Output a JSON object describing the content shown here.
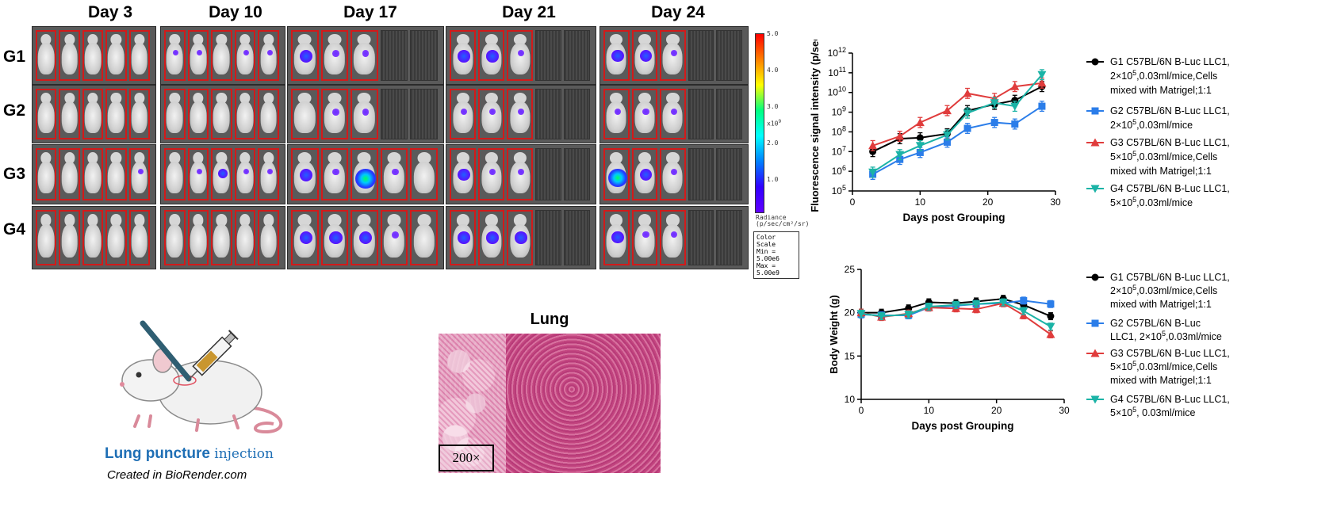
{
  "ivis": {
    "days": [
      "Day 3",
      "Day 10",
      "Day 17",
      "Day 21",
      "Day 24"
    ],
    "groups": [
      "G1",
      "G2",
      "G3",
      "G4"
    ],
    "colorbar": {
      "ticks": [
        "5.0",
        "4.0",
        "3.0",
        "2.0",
        "1.0"
      ],
      "exponent": "x10",
      "exponent_power": "9",
      "unit_line1": "Radiance",
      "unit_line2": "(p/sec/cm²/sr)",
      "scale_title": "Color Scale",
      "scale_min": "Min = 5.00e6",
      "scale_max": "Max = 5.00e9",
      "gradient_colors": [
        "#ff0000",
        "#ff8000",
        "#ffff00",
        "#00ff80",
        "#00ffff",
        "#0080ff",
        "#3000ff",
        "#6000ff"
      ]
    }
  },
  "model": {
    "title_part1": "Lung puncture",
    "title_part2": "injection",
    "credit": "Created in BioRender.com",
    "title_color": "#1f6fb5"
  },
  "histology": {
    "title": "Lung",
    "magnification": "200×"
  },
  "chart_data": [
    {
      "type": "line",
      "ylabel": "Fluorescence signal intensity (p/sec)",
      "xlabel": "Days post Grouping",
      "xlim": [
        0,
        30
      ],
      "xticks": [
        0,
        10,
        20,
        30
      ],
      "ylog": true,
      "ylim": [
        100000,
        1000000000000
      ],
      "yticks": [
        {
          "base": "10",
          "exp": "5"
        },
        {
          "base": "10",
          "exp": "6"
        },
        {
          "base": "10",
          "exp": "7"
        },
        {
          "base": "10",
          "exp": "8"
        },
        {
          "base": "10",
          "exp": "9"
        },
        {
          "base": "10",
          "exp": "10"
        },
        {
          "base": "10",
          "exp": "11"
        },
        {
          "base": "10",
          "exp": "12"
        }
      ],
      "x": [
        3,
        7,
        10,
        14,
        17,
        21,
        24,
        28
      ],
      "series": [
        {
          "color": "#000000",
          "marker": "circle",
          "values": [
            10000000,
            45000000,
            50000000,
            80000000,
            1200000000,
            2500000000,
            4000000000,
            20000000000
          ],
          "legend_lines": [
            "G1 C57BL/6N B-Luc LLC1,",
            "2×10^5,0.03ml/mice,Cells",
            "mixed with Matrigel;1:1"
          ]
        },
        {
          "color": "#2b7de9",
          "marker": "square",
          "values": [
            700000,
            4000000,
            9000000,
            30000000,
            150000000,
            300000000,
            250000000,
            2000000000
          ],
          "legend_lines": [
            "G2 C57BL/6N B-Luc LLC1,",
            "2×10^5,0.03ml/mice"
          ]
        },
        {
          "color": "#e03c3c",
          "marker": "triangle",
          "values": [
            20000000,
            60000000,
            300000000,
            1200000000,
            9000000000,
            5000000000,
            20000000000,
            30000000000
          ],
          "legend_lines": [
            "G3 C57BL/6N B-Luc LLC1,",
            "5×10^5,0.03ml/mice,Cells",
            "mixed with Matrigel;1:1"
          ]
        },
        {
          "color": "#1bb3a6",
          "marker": "triangle-down",
          "values": [
            900000,
            7000000,
            20000000,
            70000000,
            900000000,
            3000000000,
            2000000000,
            80000000000
          ],
          "legend_lines": [
            "G4 C57BL/6N B-Luc LLC1,",
            "5×10^5,0.03ml/mice"
          ]
        }
      ]
    },
    {
      "type": "line",
      "ylabel": "Body Weight (g)",
      "xlabel": "Days post Grouping",
      "xlim": [
        0,
        30
      ],
      "xticks": [
        0,
        10,
        20,
        30
      ],
      "ylim": [
        10,
        25
      ],
      "yticks": [
        10,
        15,
        20,
        25
      ],
      "x": [
        0,
        3,
        7,
        10,
        14,
        17,
        21,
        24,
        28
      ],
      "series": [
        {
          "color": "#000000",
          "marker": "circle",
          "values": [
            20.0,
            20.0,
            20.5,
            21.2,
            21.1,
            21.3,
            21.6,
            20.9,
            19.6
          ],
          "legend_lines": [
            "G1 C57BL/6N B-Luc LLC1,",
            "2×10^5,0.03ml/mice,Cells",
            "mixed with Matrigel;1:1"
          ]
        },
        {
          "color": "#2b7de9",
          "marker": "square",
          "values": [
            19.8,
            19.7,
            19.7,
            20.6,
            20.8,
            21.0,
            21.1,
            21.4,
            21.0
          ],
          "legend_lines": [
            "G2 C57BL/6N B-Luc",
            "LLC1, 2×10^5,0.03ml/mice"
          ]
        },
        {
          "color": "#e03c3c",
          "marker": "triangle",
          "values": [
            20.0,
            19.5,
            19.9,
            20.6,
            20.5,
            20.4,
            21.1,
            19.7,
            17.5
          ],
          "legend_lines": [
            "G3 C57BL/6N B-Luc LLC1,",
            "5×10^5,0.03ml/mice,Cells",
            "mixed with Matrigel;1:1"
          ]
        },
        {
          "color": "#1bb3a6",
          "marker": "triangle-down",
          "values": [
            19.9,
            19.6,
            19.8,
            20.7,
            20.9,
            21.0,
            21.2,
            20.2,
            18.4
          ],
          "legend_lines": [
            "G4 C57BL/6N B-Luc LLC1,",
            "5×10^5, 0.03ml/mice"
          ]
        }
      ]
    }
  ]
}
